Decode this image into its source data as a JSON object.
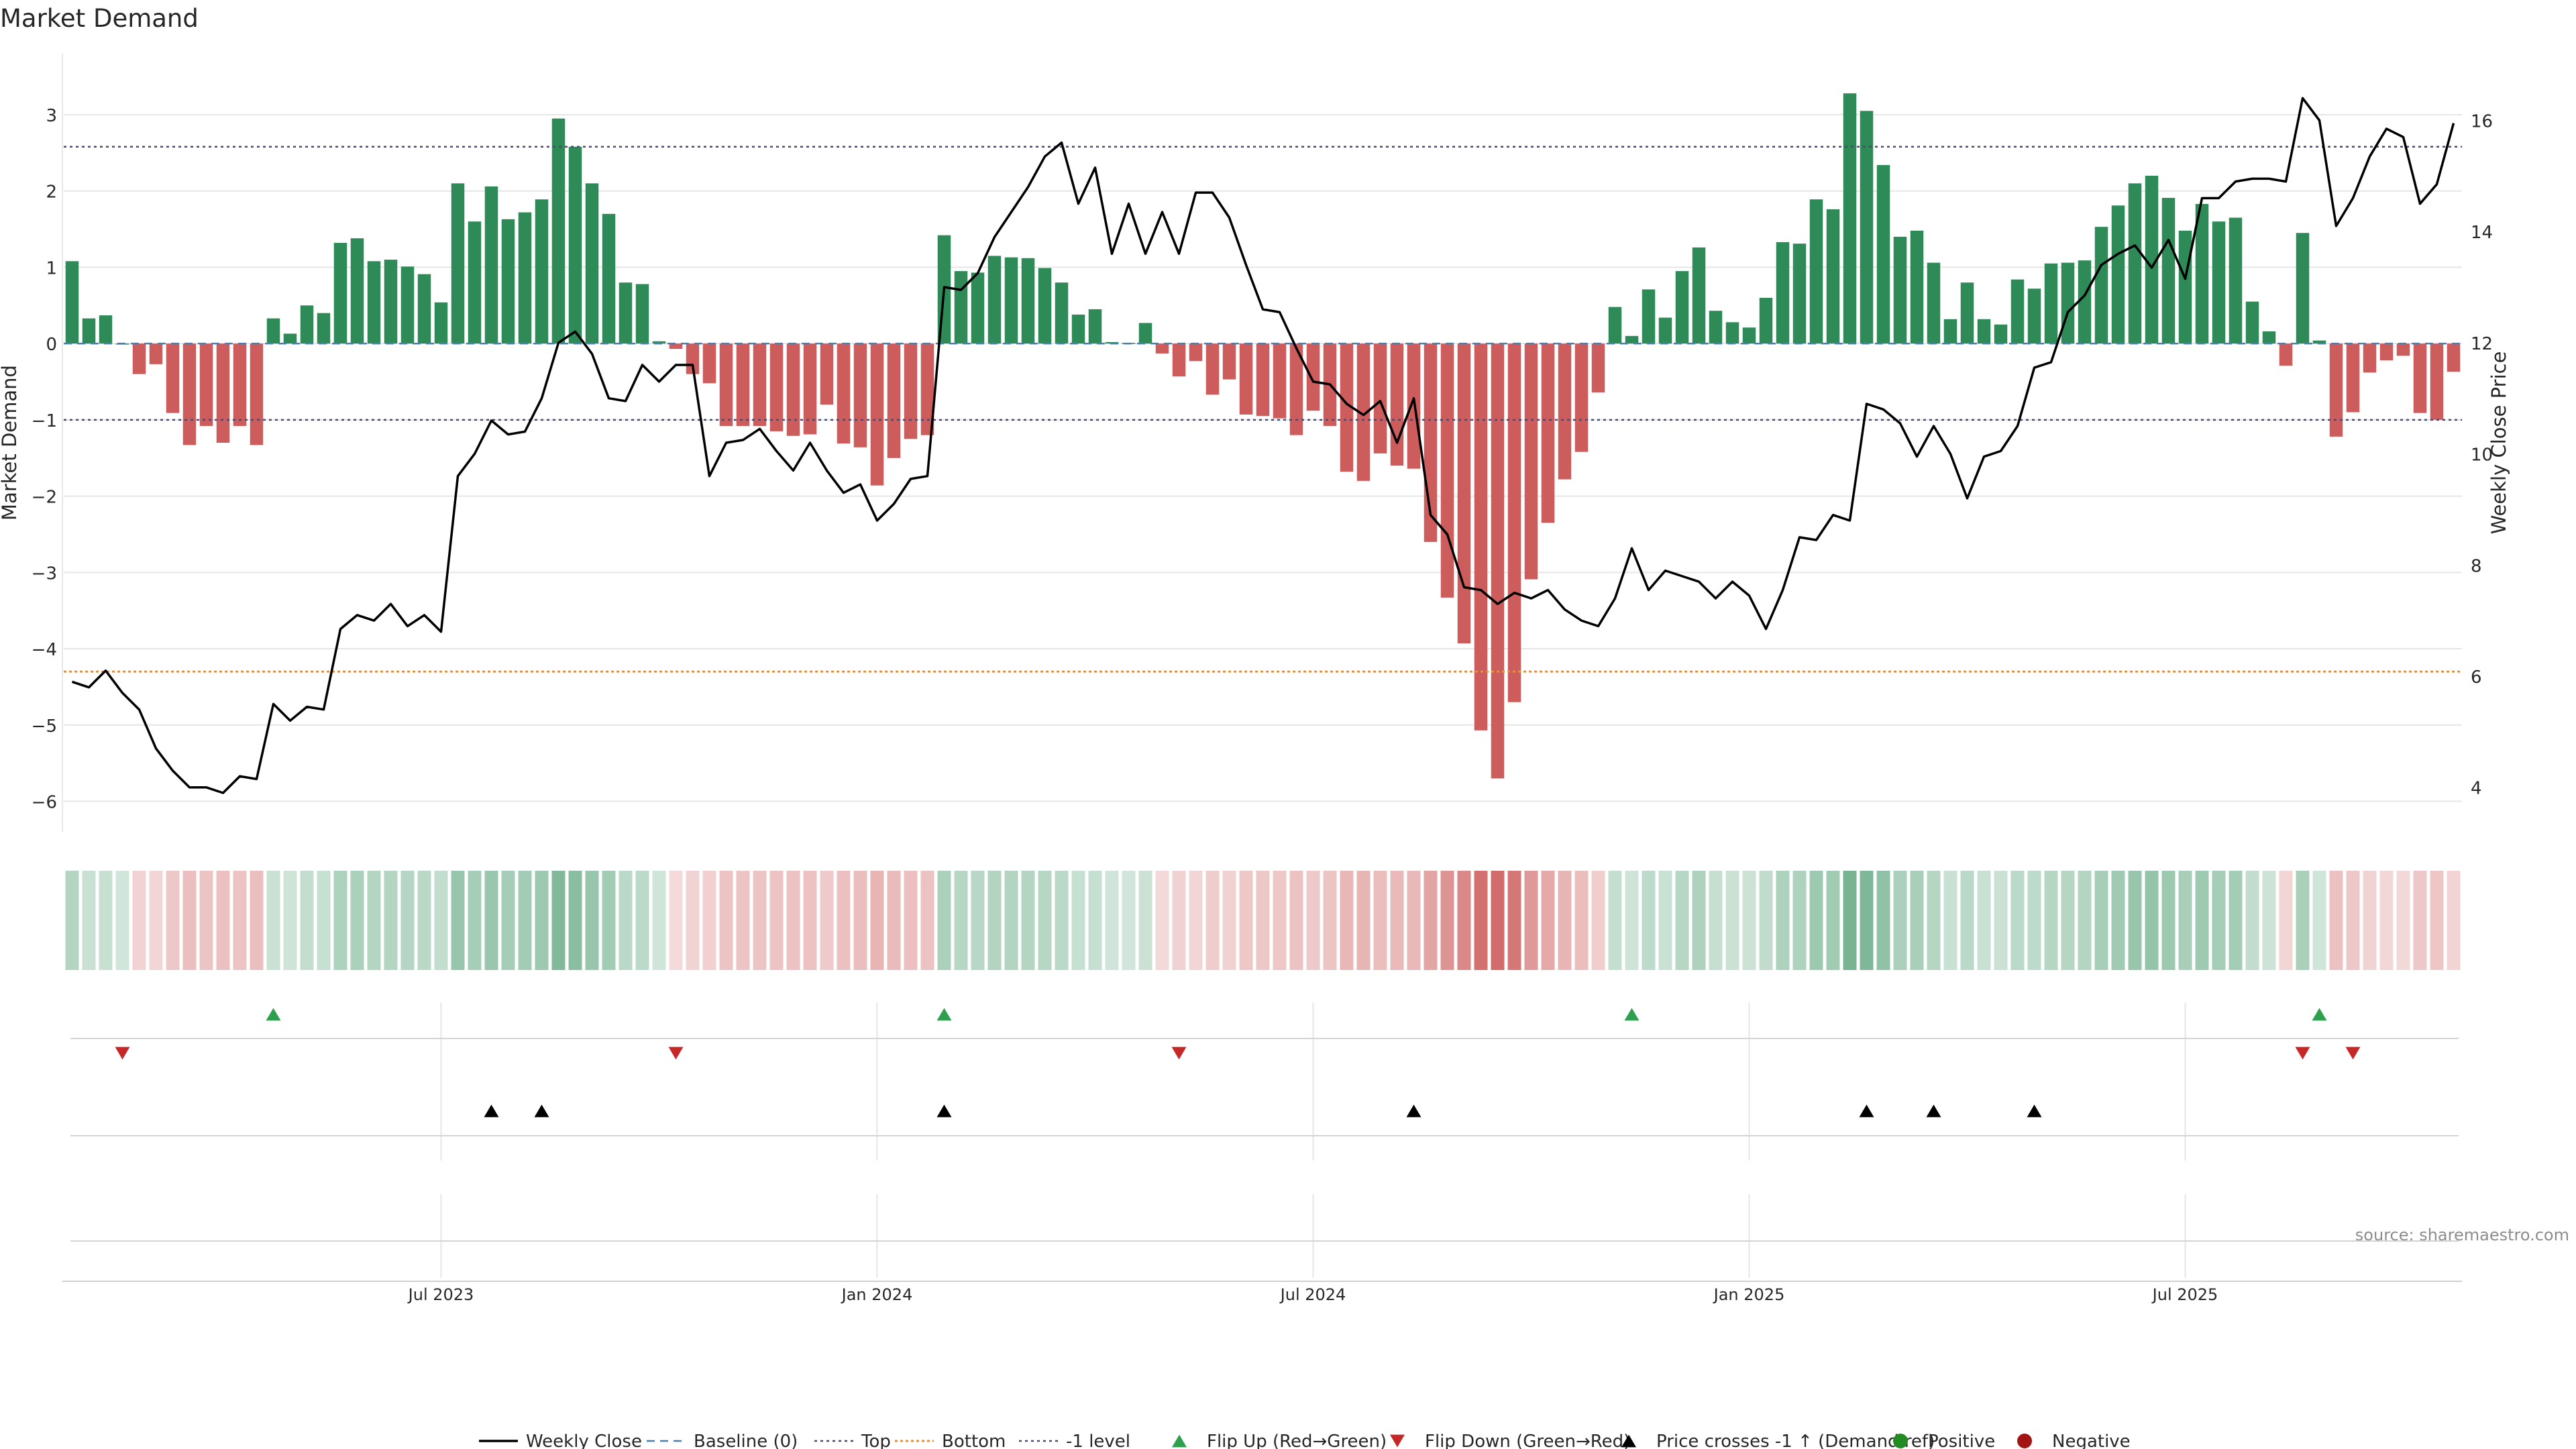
{
  "chart_data": {
    "type": "bar",
    "title": "Market Demand",
    "ylabel": "Market Demand",
    "y2label": "Weekly Close Price",
    "ylim": [
      -6.4,
      3.8
    ],
    "y2lim": [
      3.2,
      17.2
    ],
    "yticks": [
      3,
      2,
      1,
      0,
      -1,
      -2,
      -3,
      -4,
      -5,
      -6
    ],
    "yticklabels": [
      "3",
      "2",
      "1",
      "0",
      "−1",
      "−2",
      "−3",
      "−4",
      "−5",
      "−6"
    ],
    "y2ticks": [
      16,
      14,
      12,
      10,
      8,
      6,
      4
    ],
    "y2ticklabels": [
      "16",
      "14",
      "12",
      "10",
      "8",
      "6",
      "4"
    ],
    "xtick_weeks": [
      22,
      48,
      74,
      100,
      126
    ],
    "xticklabels": [
      "Jul 2023",
      "Jan 2024",
      "Jul 2024",
      "Jan 2025",
      "Jul 2025"
    ],
    "reference_lines": {
      "top": 2.58,
      "bottom": -4.3,
      "minus_one": -1.0,
      "baseline": 0
    },
    "series": [
      {
        "name": "Market Demand",
        "kind": "bar",
        "values": [
          1.08,
          0.33,
          0.37,
          0.0,
          -0.4,
          -0.27,
          -0.91,
          -1.33,
          -1.08,
          -1.3,
          -1.08,
          -1.33,
          0.33,
          0.13,
          0.5,
          0.4,
          1.32,
          1.38,
          1.08,
          1.1,
          1.01,
          0.91,
          0.54,
          2.1,
          1.6,
          2.06,
          1.63,
          1.72,
          1.89,
          2.95,
          2.58,
          2.1,
          1.7,
          0.8,
          0.78,
          0.03,
          -0.07,
          -0.4,
          -0.52,
          -1.08,
          -1.08,
          -1.08,
          -1.15,
          -1.21,
          -1.19,
          -0.8,
          -1.31,
          -1.36,
          -1.86,
          -1.5,
          -1.25,
          -1.2,
          1.42,
          0.95,
          0.93,
          1.15,
          1.13,
          1.12,
          0.99,
          0.8,
          0.38,
          0.45,
          0.02,
          0.01,
          0.27,
          -0.13,
          -0.43,
          -0.23,
          -0.67,
          -0.47,
          -0.93,
          -0.95,
          -0.98,
          -1.2,
          -0.88,
          -1.08,
          -1.68,
          -1.8,
          -1.44,
          -1.6,
          -1.64,
          -2.6,
          -3.33,
          -3.93,
          -5.07,
          -5.7,
          -4.7,
          -3.09,
          -2.35,
          -1.78,
          -1.42,
          -0.64,
          0.48,
          0.1,
          0.71,
          0.34,
          0.95,
          1.26,
          0.43,
          0.28,
          0.21,
          0.6,
          1.33,
          1.31,
          1.89,
          1.76,
          3.28,
          3.05,
          2.34,
          1.4,
          1.48,
          1.06,
          0.32,
          0.8,
          0.32,
          0.25,
          0.84,
          0.72,
          1.05,
          1.06,
          1.09,
          1.53,
          1.81,
          2.1,
          2.2,
          1.91,
          1.48,
          1.83,
          1.6,
          1.65,
          0.55,
          0.16,
          -0.29,
          1.45,
          0.04,
          -1.22,
          -0.9,
          -0.38,
          -0.22,
          -0.16,
          -0.91,
          -1.0,
          -0.37
        ]
      },
      {
        "name": "Weekly Close",
        "kind": "line",
        "axis": "right",
        "values": [
          5.9,
          5.8,
          6.1,
          5.7,
          5.4,
          4.7,
          4.3,
          4.0,
          4.0,
          3.9,
          4.2,
          4.15,
          5.5,
          5.2,
          5.45,
          5.4,
          6.85,
          7.1,
          7.0,
          7.3,
          6.9,
          7.1,
          6.8,
          9.6,
          10.0,
          10.6,
          10.35,
          10.4,
          11.0,
          12.0,
          12.2,
          11.8,
          11.0,
          10.95,
          11.6,
          11.3,
          11.6,
          11.6,
          9.6,
          10.2,
          10.25,
          10.45,
          10.05,
          9.7,
          10.2,
          9.7,
          9.3,
          9.45,
          8.8,
          9.1,
          9.55,
          9.6,
          13.0,
          12.95,
          13.25,
          13.9,
          14.35,
          14.8,
          15.35,
          15.6,
          14.5,
          15.15,
          13.6,
          14.5,
          13.6,
          14.35,
          13.6,
          14.7,
          14.7,
          14.25,
          13.4,
          12.6,
          12.55,
          11.9,
          11.3,
          11.25,
          10.9,
          10.7,
          10.95,
          10.2,
          11.0,
          8.9,
          8.55,
          7.6,
          7.55,
          7.3,
          7.5,
          7.4,
          7.55,
          7.2,
          7.0,
          6.9,
          7.4,
          8.3,
          7.55,
          7.9,
          7.8,
          7.7,
          7.4,
          7.7,
          7.45,
          6.85,
          7.55,
          8.5,
          8.45,
          8.9,
          8.8,
          10.9,
          10.8,
          10.55,
          9.95,
          10.5,
          10.0,
          9.2,
          9.95,
          10.05,
          10.5,
          11.55,
          11.65,
          12.55,
          12.85,
          13.4,
          13.6,
          13.75,
          13.35,
          13.85,
          13.15,
          14.6,
          14.6,
          14.9,
          14.95,
          14.95,
          14.9,
          16.4,
          16.0,
          14.1,
          14.6,
          15.35,
          15.85,
          15.7,
          14.5,
          14.85,
          15.95
        ]
      },
      {
        "name": "Flip Up (Red→Green)",
        "kind": "marker",
        "weeks": [
          12,
          52,
          93,
          134
        ]
      },
      {
        "name": "Flip Down (Green→Red)",
        "kind": "marker",
        "weeks": [
          3,
          36,
          66,
          133,
          136
        ]
      },
      {
        "name": "Price crosses -1 ↑ (Demand ref)",
        "kind": "marker",
        "weeks": [
          25,
          28,
          52,
          80,
          107,
          111,
          117
        ]
      }
    ],
    "legend": [
      "Weekly Close",
      "Baseline (0)",
      "Top",
      "Bottom",
      "-1 level",
      "Flip Up (Red→Green)",
      "Flip Down (Green→Red)",
      "Price crosses -1 ↑ (Demand ref)",
      "Positive",
      "Negative"
    ],
    "legend_position": "bottom-center",
    "source": "source: sharemaestro.com",
    "colors": {
      "positive": "#2e8b57",
      "negative": "#cd5c5c",
      "line": "#000000",
      "baseline": "#4a7fb5",
      "top": "#4a4a70",
      "bottom": "#e69138",
      "minus_one": "#4a4a70",
      "flip_up": "#2e9e4f",
      "flip_down": "#c62828",
      "cross": "#000000",
      "positive_dot": "#228b22",
      "negative_dot": "#a31515",
      "grid": "#e6e6e6"
    }
  }
}
